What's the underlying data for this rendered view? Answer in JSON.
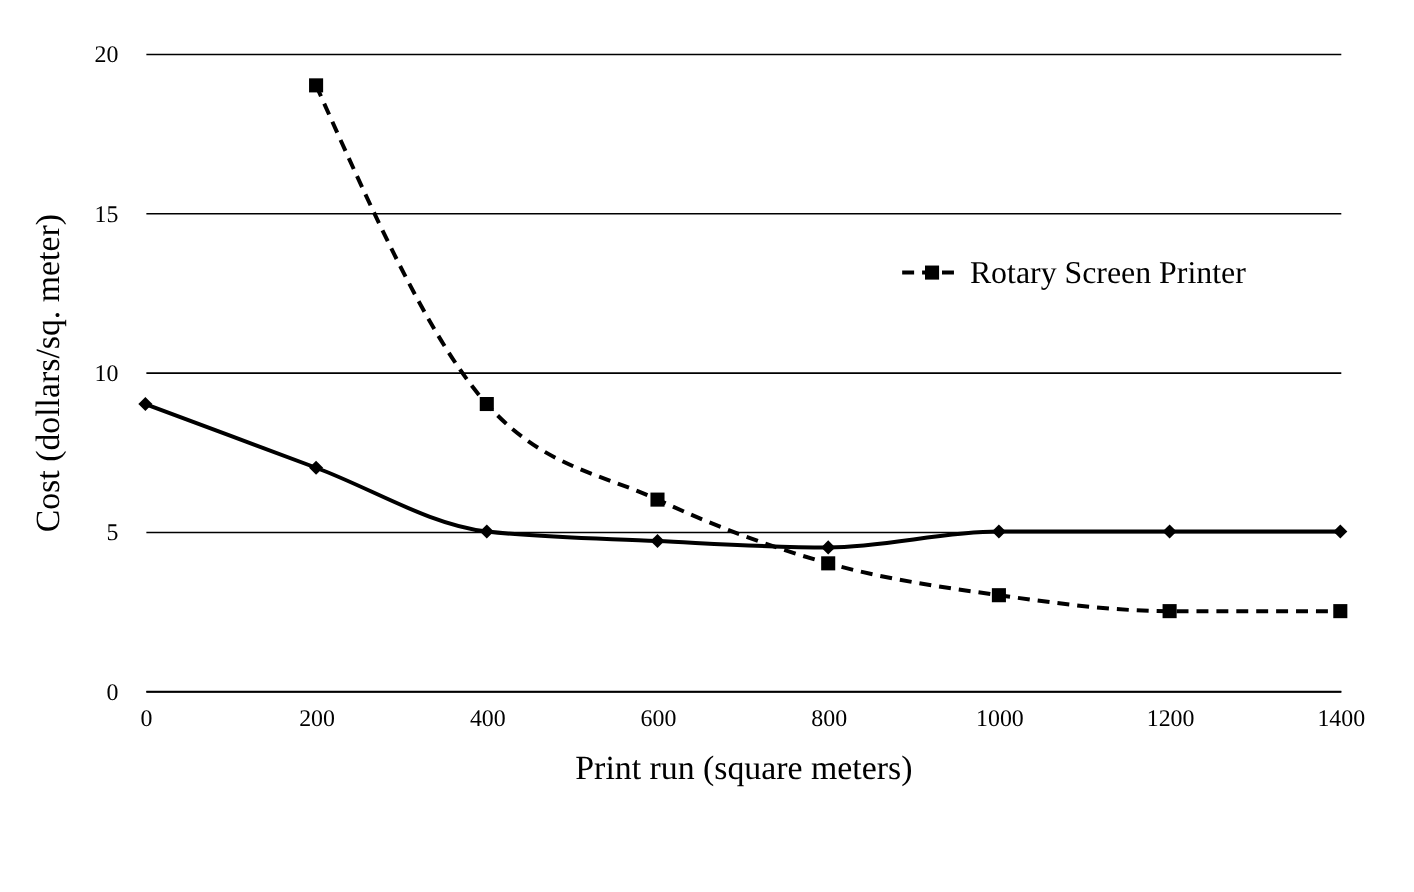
{
  "chart_data": {
    "type": "line",
    "xlabel": "Print run (square meters)",
    "ylabel": "Cost (dollars/sq. meter)",
    "xlim": [
      0,
      1400
    ],
    "xticks": [
      0,
      200,
      400,
      600,
      800,
      1000,
      1200,
      1400
    ],
    "ylim": [
      0,
      20
    ],
    "yticks": [
      0,
      5,
      10,
      15,
      20
    ],
    "grid": "y",
    "legend": "right",
    "series": [
      {
        "color": "#000000",
        "marker": "diamond",
        "line_style": "solid",
        "x": [
          0,
          200,
          400,
          600,
          800,
          1000,
          1200,
          1400
        ],
        "values": [
          9,
          7,
          5,
          4.7,
          4.5,
          5,
          5,
          5
        ]
      },
      {
        "name": "Rotary Screen Printer",
        "color": "#000000",
        "marker": "square",
        "line_style": "dashed",
        "x": [
          200,
          400,
          600,
          800,
          1000,
          1200,
          1400
        ],
        "values": [
          19,
          9,
          6,
          4,
          3,
          2.5,
          2.5
        ]
      }
    ]
  }
}
